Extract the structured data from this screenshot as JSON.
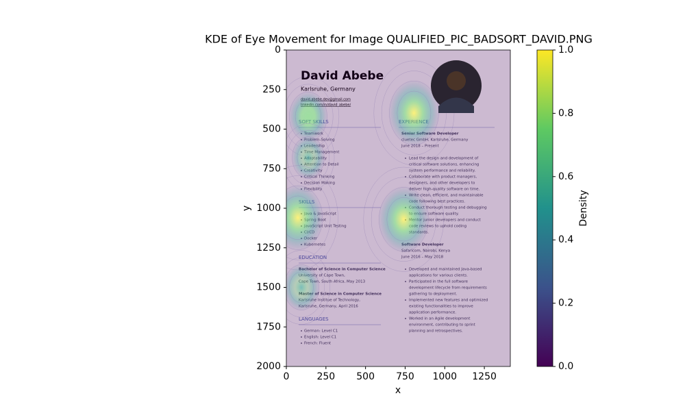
{
  "chart_data": {
    "type": "kde",
    "title": "KDE of Eye Movement for Image QUALIFIED_PIC_BADSORT_DAVID.PNG",
    "xlabel": "x",
    "ylabel": "y",
    "xlim": [
      0,
      1414
    ],
    "ylim": [
      2000,
      0
    ],
    "xticks": [
      0,
      250,
      500,
      750,
      1000,
      1250
    ],
    "yticks": [
      0,
      250,
      500,
      750,
      1000,
      1250,
      1500,
      1750,
      2000
    ],
    "hotspots": [
      {
        "x": 806,
        "y": 398,
        "density": 0.9
      },
      {
        "x": 138,
        "y": 420,
        "density": 0.5
      },
      {
        "x": 138,
        "y": 680,
        "density": 0.3
      },
      {
        "x": 73,
        "y": 1060,
        "density": 0.9
      },
      {
        "x": 741,
        "y": 1070,
        "density": 0.9
      },
      {
        "x": 95,
        "y": 1500,
        "density": 0.4
      }
    ],
    "colorbar": {
      "label": "Density",
      "lim": [
        0,
        1
      ],
      "ticks": [
        {
          "value": 0,
          "label": "0.0"
        },
        {
          "value": 0.2,
          "label": "0.2"
        },
        {
          "value": 0.4,
          "label": "0.4"
        },
        {
          "value": 0.6,
          "label": "0.6"
        },
        {
          "value": 0.8,
          "label": "0.8"
        },
        {
          "value": 1,
          "label": "1.0"
        }
      ]
    }
  },
  "resume": {
    "name": "David Abebe",
    "location": "Karlsruhe, Germany",
    "contacts": [
      "david.abebe.dev@gmail.com",
      "linkedin.com/in/david_abebe/"
    ],
    "columns": [
      [
        {
          "heading": "SOFT SKILLS",
          "items": [
            "Teamwork",
            "Problem-Solving",
            "Leadership",
            "Time Management",
            "Adaptability",
            "Attention to Detail",
            "Creativity",
            "Critical Thinking",
            "Decision Making",
            "Flexibility"
          ]
        },
        {
          "heading": "SKILLS",
          "items": [
            "Java & JavaScript",
            "Spring Boot",
            "JavaScript Unit Testing",
            "CI/CD",
            "Docker",
            "Kubernetes"
          ]
        },
        {
          "heading": "EDUCATION",
          "blocks": [
            {
              "lines": [
                "Bachelor of Science in Computer Science",
                "University of Cape Town,",
                "Cape Town, South Africa, May 2013"
              ]
            },
            {
              "lines": [
                "Master of Science in Computer Science",
                "Karlsruhe Institue of Technology,",
                "Karlsruhe, Germany, April 2016"
              ]
            }
          ]
        },
        {
          "heading": "LANGUAGES",
          "items": [
            "German: Level C1",
            "English: Level C1",
            "French: Fluent"
          ]
        }
      ],
      [
        {
          "heading": "EXPERIENCE",
          "blocks": [
            {
              "lines": [
                "Senior Software Developer",
                "cluetec GmbH, Karlsruhe, Germany",
                "June 2018 – Present"
              ],
              "bullets": [
                [
                  "Lead the design and development of",
                  "critical software solutions, enhancing",
                  "system performance and reliability."
                ],
                [
                  "Collaborate with product managers,",
                  "designers, and other developers to",
                  "deliver high-quality software on time."
                ],
                [
                  "Write clean, efficient, and maintainable",
                  "code following best practices."
                ],
                [
                  "Conduct thorough testing and debugging",
                  "to ensure software quality."
                ],
                [
                  "Mentor junior developers and conduct",
                  "code reviews to uphold coding",
                  "standards."
                ]
              ]
            },
            {
              "lines": [
                "Software Developer",
                "Safaricom, Nairobi, Kenya",
                "June 2016 – May 2018"
              ],
              "bullets": [
                [
                  "Developed and maintained Java-based",
                  "applications for various clients."
                ],
                [
                  "Participated in the full software",
                  "development lifecycle from requirements",
                  "gathering to deployment."
                ],
                [
                  "Implemented new features and optimized",
                  "existing functionalities to improve",
                  "application performance."
                ],
                [
                  "Worked in an Agile development",
                  "environment, contributing to sprint",
                  "planning and retrospectives."
                ]
              ]
            }
          ]
        }
      ]
    ]
  }
}
